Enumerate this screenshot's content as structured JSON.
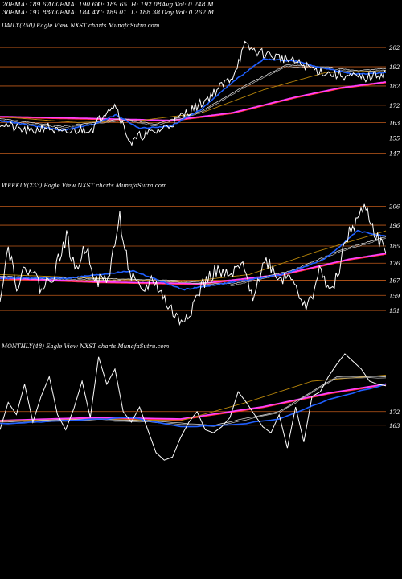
{
  "header": {
    "row1": [
      "20EMA: 189.67",
      "100EMA: 190.63",
      "O: 189.65",
      "H: 192.08",
      "Avg Vol: 0.248  M"
    ],
    "row2": [
      "30EMA: 191.88",
      "200EMA: 184.47",
      "C: 189.01",
      "L: 188.38",
      "Day Vol: 0.262  M"
    ]
  },
  "colors": {
    "background": "#000000",
    "price": "#ffffff",
    "ema_short": "#1f5fff",
    "ema_medium": "#d4d4d4",
    "ema_long": "#b8860b",
    "ema_200": "#ff3fff",
    "level_line": "#c05a1a",
    "ma_red": "#ff3030"
  },
  "chart_data": [
    {
      "type": "line",
      "title": "DAILY(250) Eagle  View  NXST charts MunafaSutra.com",
      "levels": [
        202,
        192,
        182,
        172,
        163,
        155,
        147
      ],
      "level_labels": [
        "202",
        "192",
        "182",
        "172",
        "163",
        "155",
        "147"
      ],
      "ylim": [
        141,
        210
      ],
      "x_count": 250,
      "price": [
        {
          "i": 0,
          "v": 163
        },
        {
          "i": 10,
          "v": 160
        },
        {
          "i": 20,
          "v": 158
        },
        {
          "i": 30,
          "v": 161
        },
        {
          "i": 40,
          "v": 157
        },
        {
          "i": 50,
          "v": 159
        },
        {
          "i": 60,
          "v": 160
        },
        {
          "i": 70,
          "v": 171
        },
        {
          "i": 75,
          "v": 172
        },
        {
          "i": 80,
          "v": 160
        },
        {
          "i": 85,
          "v": 152
        },
        {
          "i": 90,
          "v": 156
        },
        {
          "i": 100,
          "v": 158
        },
        {
          "i": 110,
          "v": 162
        },
        {
          "i": 120,
          "v": 168
        },
        {
          "i": 130,
          "v": 173
        },
        {
          "i": 140,
          "v": 180
        },
        {
          "i": 150,
          "v": 187
        },
        {
          "i": 158,
          "v": 203
        },
        {
          "i": 165,
          "v": 200
        },
        {
          "i": 175,
          "v": 198
        },
        {
          "i": 185,
          "v": 196
        },
        {
          "i": 195,
          "v": 193
        },
        {
          "i": 205,
          "v": 190
        },
        {
          "i": 215,
          "v": 188
        },
        {
          "i": 225,
          "v": 187
        },
        {
          "i": 235,
          "v": 186
        },
        {
          "i": 249,
          "v": 189
        }
      ],
      "ema_short": [
        {
          "i": 0,
          "v": 164
        },
        {
          "i": 40,
          "v": 159
        },
        {
          "i": 60,
          "v": 162
        },
        {
          "i": 75,
          "v": 167
        },
        {
          "i": 90,
          "v": 160
        },
        {
          "i": 110,
          "v": 161
        },
        {
          "i": 130,
          "v": 170
        },
        {
          "i": 150,
          "v": 184
        },
        {
          "i": 170,
          "v": 196
        },
        {
          "i": 190,
          "v": 195
        },
        {
          "i": 210,
          "v": 191
        },
        {
          "i": 230,
          "v": 188
        },
        {
          "i": 249,
          "v": 189
        }
      ],
      "ema_medium": [
        {
          "i": 0,
          "v": 165
        },
        {
          "i": 40,
          "v": 161
        },
        {
          "i": 60,
          "v": 163
        },
        {
          "i": 80,
          "v": 165
        },
        {
          "i": 100,
          "v": 162
        },
        {
          "i": 130,
          "v": 169
        },
        {
          "i": 160,
          "v": 183
        },
        {
          "i": 185,
          "v": 193
        },
        {
          "i": 210,
          "v": 192
        },
        {
          "i": 230,
          "v": 190
        },
        {
          "i": 249,
          "v": 191
        }
      ],
      "ema_long": [
        {
          "i": 0,
          "v": 166
        },
        {
          "i": 50,
          "v": 163
        },
        {
          "i": 90,
          "v": 164
        },
        {
          "i": 130,
          "v": 168
        },
        {
          "i": 170,
          "v": 180
        },
        {
          "i": 210,
          "v": 189
        },
        {
          "i": 249,
          "v": 190
        }
      ],
      "ema_200": [
        {
          "i": 0,
          "v": 166
        },
        {
          "i": 60,
          "v": 165
        },
        {
          "i": 110,
          "v": 164
        },
        {
          "i": 150,
          "v": 168
        },
        {
          "i": 190,
          "v": 176
        },
        {
          "i": 220,
          "v": 181
        },
        {
          "i": 249,
          "v": 184
        }
      ]
    },
    {
      "type": "line",
      "title": "WEEKLY(233) Eagle  View  NXST charts MunafaSutra.com",
      "levels": [
        206,
        196,
        185,
        176,
        167,
        159,
        151
      ],
      "level_labels": [
        "206",
        "196",
        "185",
        "176",
        "167",
        "159",
        "151"
      ],
      "ylim": [
        143,
        213
      ],
      "x_count": 233,
      "price": [
        {
          "i": 0,
          "v": 159
        },
        {
          "i": 5,
          "v": 185
        },
        {
          "i": 10,
          "v": 165
        },
        {
          "i": 18,
          "v": 175
        },
        {
          "i": 25,
          "v": 162
        },
        {
          "i": 32,
          "v": 170
        },
        {
          "i": 40,
          "v": 190
        },
        {
          "i": 45,
          "v": 172
        },
        {
          "i": 52,
          "v": 185
        },
        {
          "i": 58,
          "v": 166
        },
        {
          "i": 65,
          "v": 168
        },
        {
          "i": 72,
          "v": 200
        },
        {
          "i": 78,
          "v": 170
        },
        {
          "i": 85,
          "v": 160
        },
        {
          "i": 92,
          "v": 168
        },
        {
          "i": 100,
          "v": 155
        },
        {
          "i": 108,
          "v": 145
        },
        {
          "i": 115,
          "v": 152
        },
        {
          "i": 122,
          "v": 165
        },
        {
          "i": 130,
          "v": 172
        },
        {
          "i": 138,
          "v": 168
        },
        {
          "i": 145,
          "v": 175
        },
        {
          "i": 152,
          "v": 160
        },
        {
          "i": 160,
          "v": 178
        },
        {
          "i": 168,
          "v": 168
        },
        {
          "i": 176,
          "v": 170
        },
        {
          "i": 184,
          "v": 150
        },
        {
          "i": 192,
          "v": 172
        },
        {
          "i": 200,
          "v": 160
        },
        {
          "i": 208,
          "v": 188
        },
        {
          "i": 214,
          "v": 198
        },
        {
          "i": 220,
          "v": 206
        },
        {
          "i": 226,
          "v": 190
        },
        {
          "i": 232,
          "v": 183
        }
      ],
      "ema_short": [
        {
          "i": 0,
          "v": 168
        },
        {
          "i": 40,
          "v": 168
        },
        {
          "i": 80,
          "v": 172
        },
        {
          "i": 110,
          "v": 162
        },
        {
          "i": 140,
          "v": 166
        },
        {
          "i": 170,
          "v": 170
        },
        {
          "i": 195,
          "v": 178
        },
        {
          "i": 215,
          "v": 193
        },
        {
          "i": 232,
          "v": 190
        }
      ],
      "ema_medium": [
        {
          "i": 0,
          "v": 169
        },
        {
          "i": 50,
          "v": 168
        },
        {
          "i": 100,
          "v": 167
        },
        {
          "i": 140,
          "v": 165
        },
        {
          "i": 175,
          "v": 172
        },
        {
          "i": 205,
          "v": 183
        },
        {
          "i": 232,
          "v": 190
        }
      ],
      "ema_long": [
        {
          "i": 0,
          "v": 170
        },
        {
          "i": 60,
          "v": 168
        },
        {
          "i": 110,
          "v": 166
        },
        {
          "i": 150,
          "v": 170
        },
        {
          "i": 190,
          "v": 182
        },
        {
          "i": 232,
          "v": 193
        }
      ],
      "ema_200": [
        {
          "i": 0,
          "v": 168
        },
        {
          "i": 60,
          "v": 166
        },
        {
          "i": 120,
          "v": 165
        },
        {
          "i": 170,
          "v": 170
        },
        {
          "i": 210,
          "v": 178
        },
        {
          "i": 232,
          "v": 181
        }
      ]
    },
    {
      "type": "line",
      "title": "MONTHLY(48) Eagle  View  NXST charts MunafaSutra.com",
      "levels": [
        172,
        163
      ],
      "level_labels": [
        "172",
        "163"
      ],
      "ylim": [
        120,
        210
      ],
      "x_count": 48,
      "price": [
        {
          "i": 0,
          "v": 160
        },
        {
          "i": 1,
          "v": 178
        },
        {
          "i": 2,
          "v": 170
        },
        {
          "i": 3,
          "v": 190
        },
        {
          "i": 4,
          "v": 165
        },
        {
          "i": 5,
          "v": 182
        },
        {
          "i": 6,
          "v": 195
        },
        {
          "i": 7,
          "v": 170
        },
        {
          "i": 8,
          "v": 160
        },
        {
          "i": 9,
          "v": 174
        },
        {
          "i": 10,
          "v": 192
        },
        {
          "i": 11,
          "v": 168
        },
        {
          "i": 12,
          "v": 208
        },
        {
          "i": 13,
          "v": 190
        },
        {
          "i": 14,
          "v": 200
        },
        {
          "i": 15,
          "v": 172
        },
        {
          "i": 16,
          "v": 165
        },
        {
          "i": 17,
          "v": 175
        },
        {
          "i": 18,
          "v": 160
        },
        {
          "i": 19,
          "v": 145
        },
        {
          "i": 20,
          "v": 140
        },
        {
          "i": 21,
          "v": 142
        },
        {
          "i": 22,
          "v": 155
        },
        {
          "i": 23,
          "v": 165
        },
        {
          "i": 24,
          "v": 172
        },
        {
          "i": 25,
          "v": 160
        },
        {
          "i": 26,
          "v": 158
        },
        {
          "i": 27,
          "v": 162
        },
        {
          "i": 28,
          "v": 168
        },
        {
          "i": 29,
          "v": 185
        },
        {
          "i": 30,
          "v": 178
        },
        {
          "i": 31,
          "v": 170
        },
        {
          "i": 32,
          "v": 162
        },
        {
          "i": 33,
          "v": 158
        },
        {
          "i": 34,
          "v": 170
        },
        {
          "i": 35,
          "v": 148
        },
        {
          "i": 36,
          "v": 175
        },
        {
          "i": 37,
          "v": 152
        },
        {
          "i": 38,
          "v": 182
        },
        {
          "i": 39,
          "v": 185
        },
        {
          "i": 40,
          "v": 195
        },
        {
          "i": 41,
          "v": 203
        },
        {
          "i": 42,
          "v": 210
        },
        {
          "i": 43,
          "v": 205
        },
        {
          "i": 44,
          "v": 200
        },
        {
          "i": 45,
          "v": 192
        },
        {
          "i": 46,
          "v": 190
        },
        {
          "i": 47,
          "v": 189
        }
      ],
      "ema_short": [
        {
          "i": 0,
          "v": 164
        },
        {
          "i": 8,
          "v": 166
        },
        {
          "i": 16,
          "v": 168
        },
        {
          "i": 22,
          "v": 162
        },
        {
          "i": 28,
          "v": 163
        },
        {
          "i": 34,
          "v": 167
        },
        {
          "i": 40,
          "v": 180
        },
        {
          "i": 47,
          "v": 190
        }
      ],
      "ema_medium": [
        {
          "i": 0,
          "v": 165
        },
        {
          "i": 10,
          "v": 167
        },
        {
          "i": 18,
          "v": 166
        },
        {
          "i": 26,
          "v": 163
        },
        {
          "i": 34,
          "v": 172
        },
        {
          "i": 41,
          "v": 195
        },
        {
          "i": 47,
          "v": 195
        }
      ],
      "ema_long": [
        {
          "i": 0,
          "v": 166
        },
        {
          "i": 12,
          "v": 167
        },
        {
          "i": 22,
          "v": 166
        },
        {
          "i": 30,
          "v": 178
        },
        {
          "i": 38,
          "v": 192
        },
        {
          "i": 47,
          "v": 196
        }
      ],
      "ema_200": [
        {
          "i": 0,
          "v": 166
        },
        {
          "i": 12,
          "v": 168
        },
        {
          "i": 22,
          "v": 167
        },
        {
          "i": 32,
          "v": 175
        },
        {
          "i": 40,
          "v": 184
        },
        {
          "i": 47,
          "v": 190
        }
      ]
    }
  ]
}
